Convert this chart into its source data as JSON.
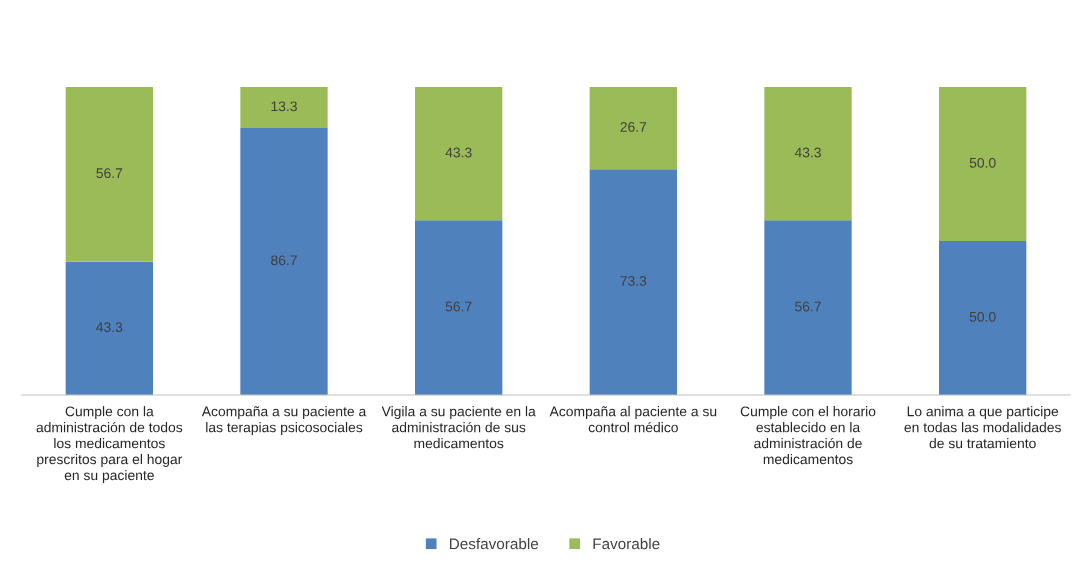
{
  "chart_data": {
    "type": "bar",
    "stacked": true,
    "legend": "bottom",
    "grid": false,
    "categories": [
      "Cumple con la administración de todos los medicamentos prescritos para el hogar en su paciente",
      "Acompaña a su paciente a las terapias psicosociales",
      "Vigila a su paciente en la administración de sus medicamentos",
      "Acompaña al paciente a su control médico",
      "Cumple con el horario establecido en la administración de medicamentos",
      "Lo anima a que participe en todas las modalidades de su tratamiento"
    ],
    "series": [
      {
        "name": "Desfavorable",
        "color": "#4f81bd",
        "values": [
          43.3,
          86.7,
          56.7,
          73.3,
          56.7,
          50.0
        ],
        "value_labels": [
          "43.3",
          "86.7",
          "56.7",
          "73.3",
          "56.7",
          "50.0"
        ]
      },
      {
        "name": "Favorable",
        "color": "#9bbb59",
        "values": [
          56.7,
          13.3,
          43.3,
          26.7,
          43.3,
          50.0
        ],
        "value_labels": [
          "56.7",
          "13.3",
          "43.3",
          "26.7",
          "43.3",
          "50.0"
        ]
      }
    ]
  }
}
